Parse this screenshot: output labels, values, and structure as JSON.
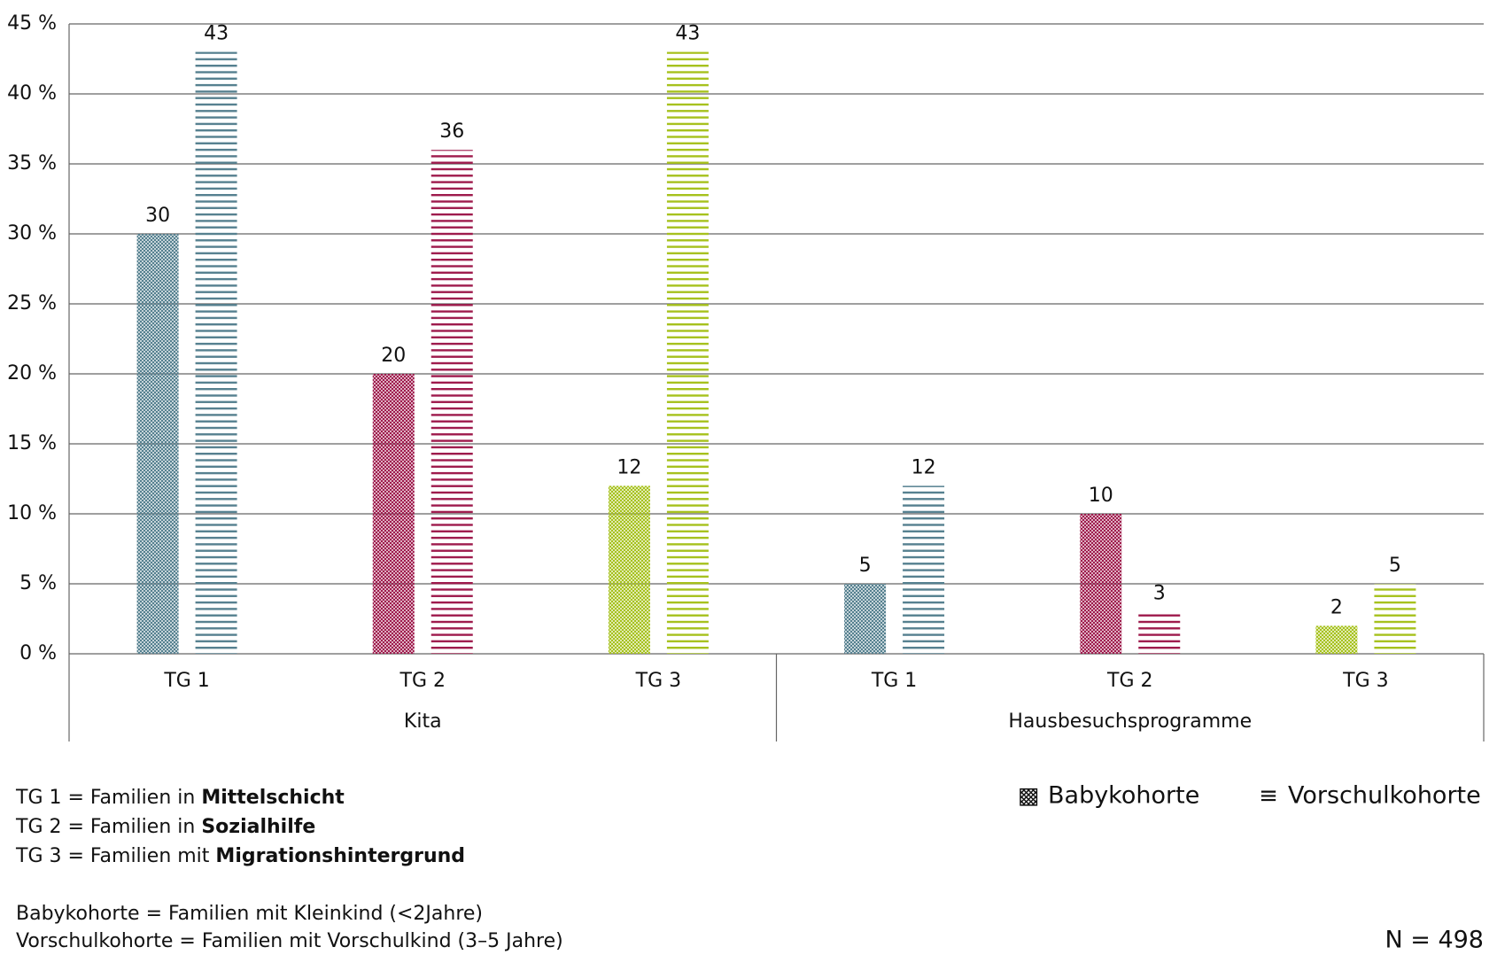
{
  "chart_data": {
    "type": "bar",
    "categories": [
      "TG 1",
      "TG 2",
      "TG 3",
      "TG 1",
      "TG 2",
      "TG 3"
    ],
    "category_colors": [
      "#55808f",
      "#9e1a4c",
      "#a6c11c",
      "#55808f",
      "#9e1a4c",
      "#a6c11c"
    ],
    "groups": [
      {
        "label": "Kita",
        "size": 3
      },
      {
        "label": "Hausbesuchsprogramme",
        "size": 3
      }
    ],
    "series": [
      {
        "name": "Babykohorte",
        "pattern": "checker",
        "values": [
          30,
          20,
          12,
          5,
          10,
          2
        ]
      },
      {
        "name": "Vorschulkohorte",
        "pattern": "stripes",
        "values": [
          43,
          36,
          43,
          12,
          3,
          5
        ]
      }
    ],
    "ylim": [
      0,
      45
    ],
    "yticks": [
      {
        "value": 0,
        "label": "0 %"
      },
      {
        "value": 5,
        "label": "5 %"
      },
      {
        "value": 10,
        "label": "10 %"
      },
      {
        "value": 15,
        "label": "15 %"
      },
      {
        "value": 20,
        "label": "20 %"
      },
      {
        "value": 25,
        "label": "25 %"
      },
      {
        "value": 30,
        "label": "30 %"
      },
      {
        "value": 35,
        "label": "35 %"
      },
      {
        "value": 40,
        "label": "40 %"
      },
      {
        "value": 45,
        "label": "45 %"
      }
    ],
    "grid": true,
    "legend": "bottom-right",
    "legend_icons": [
      "▩",
      "≡"
    ],
    "notes": [
      [
        "TG 1 = Familien in ",
        "Mittelschicht"
      ],
      [
        "TG 2 = Familien in ",
        "Sozialhilfe"
      ],
      [
        "TG 3 = Familien mit ",
        "Migrationshintergrund"
      ]
    ],
    "definitions": [
      "Babykohorte = Familien mit Kleinkind (<2Jahre)",
      "Vorschulkohorte = Familien mit Vorschulkind (3–5 Jahre)"
    ],
    "sample_size": "N = 498"
  }
}
